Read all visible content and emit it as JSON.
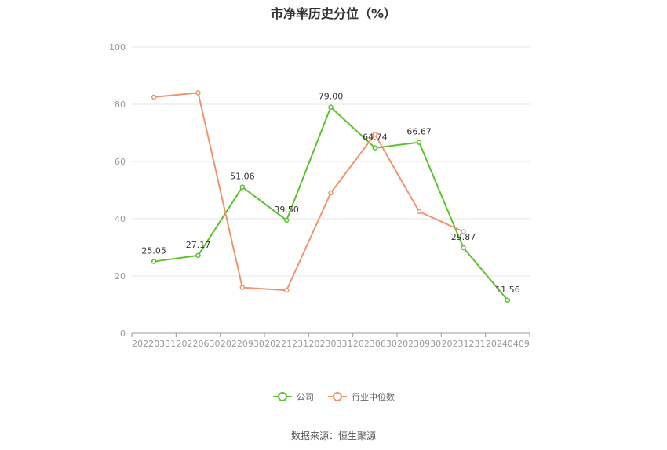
{
  "chart_data": {
    "type": "line",
    "title": "市净率历史分位（%）",
    "categories": [
      "20220331",
      "20220630",
      "20220930",
      "20221231",
      "20230331",
      "20230630",
      "20230930",
      "20231231",
      "20240409"
    ],
    "ylim": [
      0,
      100
    ],
    "yticks": [
      0,
      20,
      40,
      60,
      80,
      100
    ],
    "grid": true,
    "legend_position": "bottom",
    "series": [
      {
        "name": "公司",
        "color": "#5cc12f",
        "values": [
          25.05,
          27.17,
          51.06,
          39.5,
          79.0,
          64.74,
          66.67,
          29.87,
          11.56
        ],
        "labels": [
          "25.05",
          "27.17",
          "51.06",
          "39.50",
          "79.00",
          "64.74",
          "66.67",
          "29.87",
          "11.56"
        ]
      },
      {
        "name": "行业中位数",
        "color": "#f0956a",
        "values": [
          82.5,
          84.0,
          16.0,
          15.0,
          49.0,
          69.5,
          42.5,
          35.5,
          null
        ]
      }
    ]
  },
  "source": "数据来源：恒生聚源"
}
